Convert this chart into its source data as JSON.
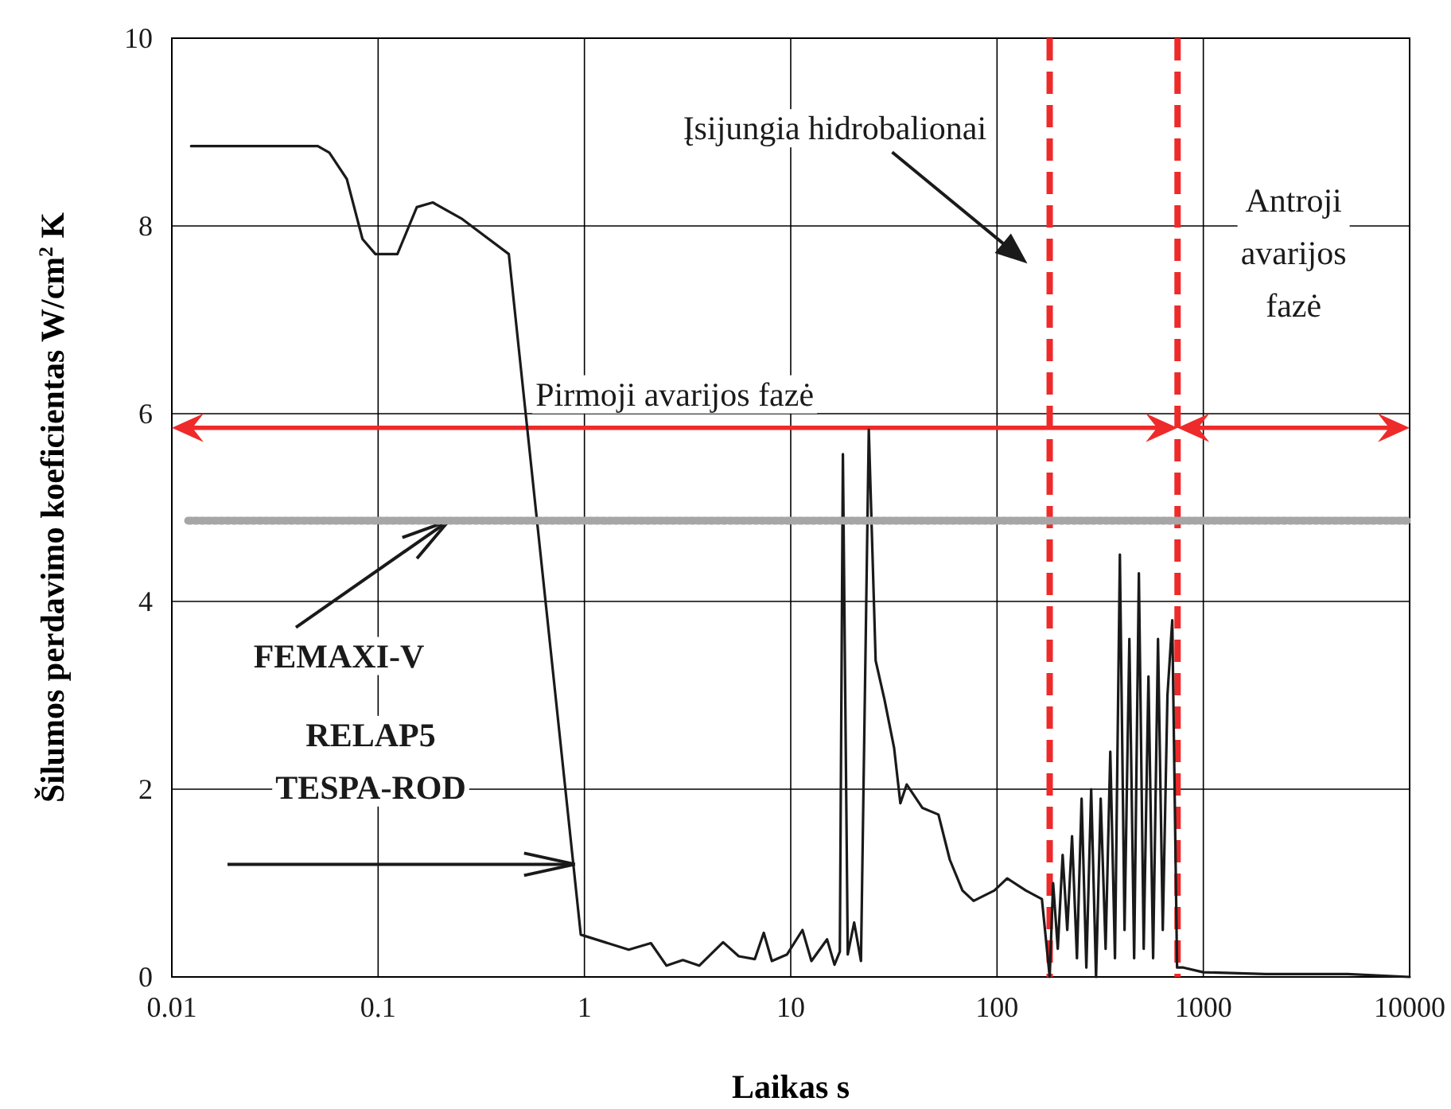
{
  "chart_data": {
    "type": "line",
    "xlabel": "Laikas s",
    "ylabel": "Šilumos perdavimo koeficientas W/cm$^{2}$ K",
    "log": "x",
    "xlim": [
      0.01,
      10000
    ],
    "ylim": [
      0,
      10
    ],
    "xticks": [
      {
        "value": 0.01,
        "label": "0.01"
      },
      {
        "value": 0.1,
        "label": "0.1"
      },
      1,
      10,
      100,
      1000,
      10000
    ],
    "yticks": [
      0,
      2,
      4,
      6,
      8,
      10
    ],
    "grid": true,
    "series": [
      {
        "name": "RELAP5 TESPA-ROD",
        "color": "#1a1a1a",
        "x": [
          0.0124,
          0.051,
          0.058,
          0.0705,
          0.084,
          0.097,
          0.124,
          0.154,
          0.184,
          0.253,
          0.43,
          0.96,
          1.64,
          2.1,
          2.5,
          3.0,
          3.6,
          4.7,
          5.6,
          6.7,
          7.4,
          8.1,
          9.6,
          11.4,
          12.6,
          15.0,
          16.3,
          17.3,
          17.9,
          18.9,
          20.3,
          21.9,
          23.9,
          25.8,
          28.5,
          31.7,
          34,
          36.5,
          43.5,
          52,
          59,
          68,
          77,
          97,
          112,
          138,
          165,
          180,
          187,
          197,
          208,
          219,
          231,
          244,
          257,
          271,
          286,
          302,
          318,
          336,
          354,
          373,
          394,
          415,
          438,
          462,
          487,
          514,
          542,
          571,
          603,
          636,
          670,
          707,
          746,
          800,
          1000,
          2000,
          5000,
          10000
        ],
        "values": [
          8.85,
          8.85,
          8.78,
          8.5,
          7.86,
          7.7,
          7.7,
          8.2,
          8.25,
          8.08,
          7.7,
          0.45,
          0.29,
          0.36,
          0.12,
          0.18,
          0.12,
          0.37,
          0.22,
          0.19,
          0.47,
          0.17,
          0.24,
          0.5,
          0.17,
          0.4,
          0.13,
          0.27,
          5.57,
          0.24,
          0.58,
          0.17,
          5.83,
          3.37,
          2.95,
          2.44,
          1.85,
          2.05,
          1.8,
          1.73,
          1.25,
          0.92,
          0.81,
          0.92,
          1.05,
          0.92,
          0.83,
          0,
          1.0,
          0.3,
          1.3,
          0.5,
          1.5,
          0.2,
          1.9,
          0.1,
          2.0,
          0,
          1.9,
          0.3,
          2.4,
          0.2,
          4.5,
          0.5,
          3.6,
          0.2,
          4.3,
          0.3,
          3.2,
          0.2,
          3.6,
          0.5,
          3.0,
          3.8,
          0.1,
          0.1,
          0.05,
          0.03,
          0.03,
          0
        ]
      },
      {
        "name": "FEMAXI-V",
        "color": "#a6a6a6",
        "line_style": "dotted",
        "x": [
          0.012,
          10000
        ],
        "values": [
          4.86,
          4.86
        ]
      }
    ],
    "ref_lines": [
      {
        "axis": "x",
        "value": 180,
        "color": "#ee2a2a",
        "line_style": "dashed"
      },
      {
        "axis": "x",
        "value": 750,
        "color": "#ee2a2a",
        "line_style": "dashed"
      }
    ],
    "annotations": [
      "Įsijungia hidrobalionai",
      "Pirmoji avarijos fazė",
      "Antroji avarijos fazė"
    ]
  }
}
